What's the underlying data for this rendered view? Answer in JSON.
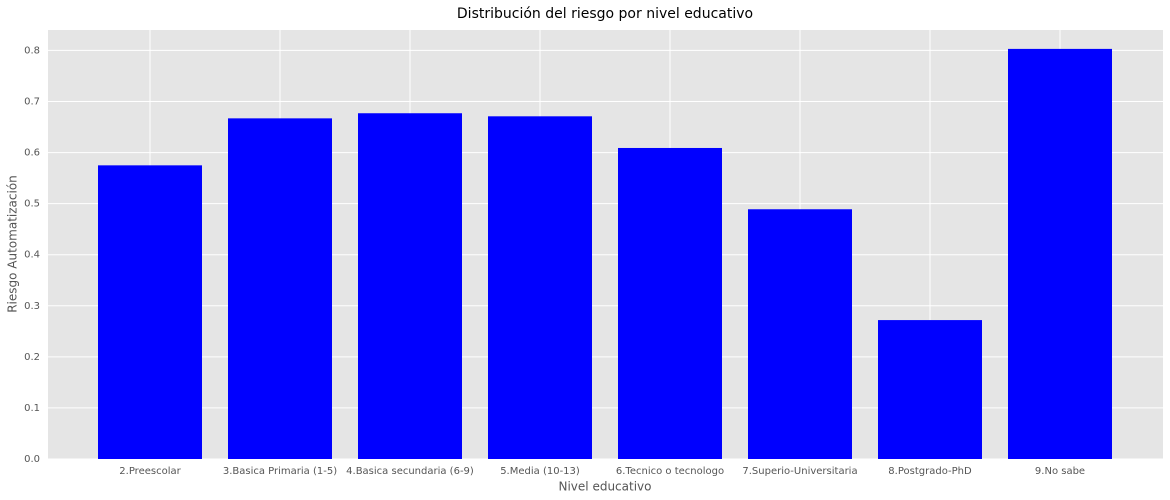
{
  "chart_data": {
    "type": "bar",
    "title": "Distribución del riesgo por nivel educativo",
    "xlabel": "Nivel educativo",
    "ylabel": "Riesgo Automatización",
    "categories": [
      "2.Preescolar",
      "3.Basica Primaria (1-5)",
      "4.Basica secundaria (6-9)",
      "5.Media (10-13)",
      "6.Tecnico o tecnologo",
      "7.Superio-Universitaria",
      "8.Postgrado-PhD",
      "9.No sabe"
    ],
    "values": [
      0.575,
      0.667,
      0.677,
      0.671,
      0.609,
      0.489,
      0.272,
      0.803
    ],
    "color": "#0000ff",
    "ylim": [
      0,
      0.84
    ],
    "yticks": [
      {
        "value": 0,
        "label": "0.0"
      },
      0.1,
      0.2,
      0.3,
      0.4,
      0.5,
      0.6,
      0.7,
      0.8
    ],
    "grid": true
  }
}
